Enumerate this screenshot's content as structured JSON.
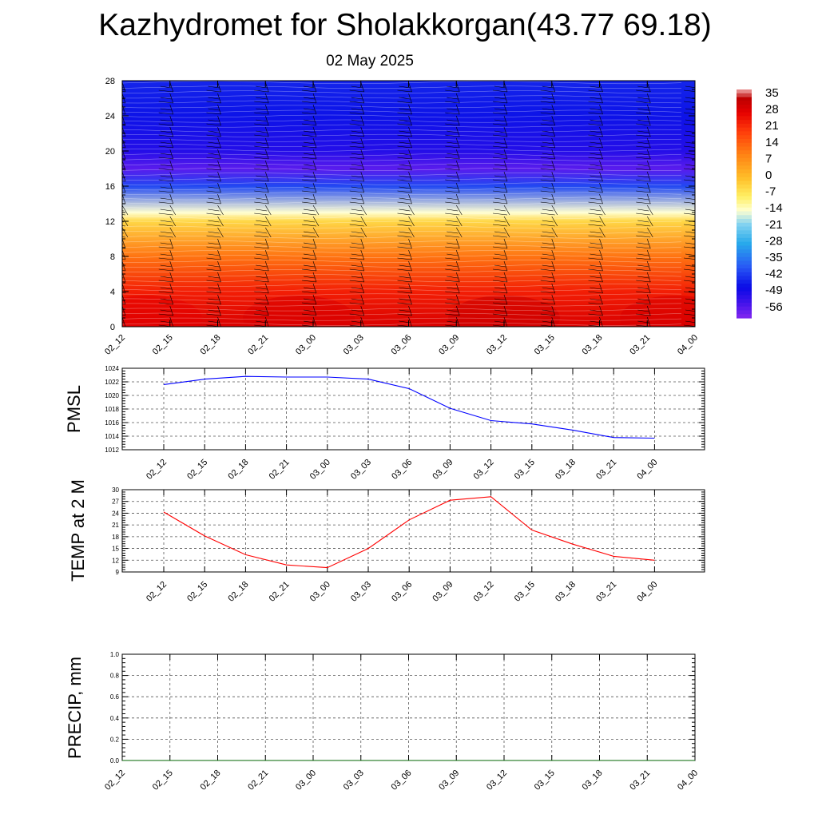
{
  "title": "Kazhydromet for Sholakkorgan(43.77 69.18)",
  "subtitle": "02 May 2025",
  "time_labels": [
    "02_12",
    "02_15",
    "02_18",
    "02_21",
    "03_00",
    "03_03",
    "03_06",
    "03_09",
    "03_12",
    "03_15",
    "03_18",
    "03_21",
    "04_00"
  ],
  "chart_data": [
    {
      "type": "heatmap",
      "title": "",
      "ylabel": "",
      "x": [
        "02_12",
        "02_15",
        "02_18",
        "02_21",
        "03_00",
        "03_03",
        "03_06",
        "03_09",
        "03_12",
        "03_15",
        "03_18",
        "03_21",
        "04_00"
      ],
      "ylim": [
        0,
        28
      ],
      "yticks": [
        0,
        4,
        8,
        12,
        16,
        20,
        24,
        28
      ],
      "colorbar": {
        "labels": [
          "35",
          "28",
          "21",
          "14",
          "7",
          "0",
          "-7",
          "-14",
          "-21",
          "-28",
          "-35",
          "-42",
          "-49",
          "-56"
        ],
        "range": [
          -60,
          38
        ]
      },
      "temperature_profile": [
        {
          "level": 0,
          "temp": 30
        },
        {
          "level": 4,
          "temp": 24
        },
        {
          "level": 8,
          "temp": 12
        },
        {
          "level": 12,
          "temp": -4
        },
        {
          "level": 13,
          "temp": -14
        },
        {
          "level": 16,
          "temp": -40
        },
        {
          "level": 18,
          "temp": -56
        },
        {
          "level": 20,
          "temp": -50
        },
        {
          "level": 24,
          "temp": -46
        },
        {
          "level": 28,
          "temp": -44
        }
      ],
      "wind_barbs": true
    },
    {
      "type": "line",
      "ylabel": "PMSL",
      "x": [
        "02_12",
        "02_15",
        "02_18",
        "02_21",
        "03_00",
        "03_03",
        "03_06",
        "03_09",
        "03_12",
        "03_15",
        "03_18",
        "03_21",
        "04_00"
      ],
      "ylim": [
        1012,
        1024
      ],
      "yticks": [
        1012,
        1014,
        1016,
        1018,
        1020,
        1022,
        1024
      ],
      "series": [
        {
          "values": [
            1021.6,
            1022.4,
            1022.8,
            1022.7,
            1022.7,
            1022.4,
            1021.0,
            1018.1,
            1016.3,
            1015.8,
            1014.9,
            1013.8,
            1013.7
          ],
          "color": "#0000ff"
        }
      ],
      "grid": true
    },
    {
      "type": "line",
      "ylabel": "TEMP at 2 M",
      "x": [
        "02_12",
        "02_15",
        "02_18",
        "02_21",
        "03_00",
        "03_03",
        "03_06",
        "03_09",
        "03_12",
        "03_15",
        "03_18",
        "03_21",
        "04_00"
      ],
      "ylim": [
        9,
        30
      ],
      "yticks": [
        9,
        12,
        15,
        18,
        21,
        24,
        27,
        30
      ],
      "series": [
        {
          "values": [
            24.3,
            18.2,
            13.4,
            10.8,
            10.1,
            15.0,
            22.3,
            27.3,
            28.2,
            19.7,
            16.1,
            13.0,
            12.0
          ],
          "color": "#ff0000"
        }
      ],
      "grid": true
    },
    {
      "type": "line",
      "ylabel": "PRECIP, mm",
      "x": [
        "02_12",
        "02_15",
        "02_18",
        "02_21",
        "03_00",
        "03_03",
        "03_06",
        "03_09",
        "03_12",
        "03_15",
        "03_18",
        "03_21",
        "04_00"
      ],
      "ylim": [
        0,
        1
      ],
      "yticks": [
        "0.0",
        "0.2",
        "0.4",
        "0.6",
        "0.8",
        "1.0"
      ],
      "series": [
        {
          "values": [
            0,
            0,
            0,
            0,
            0,
            0,
            0,
            0,
            0,
            0,
            0,
            0,
            0
          ],
          "color": "#006400"
        }
      ],
      "grid": true
    }
  ]
}
